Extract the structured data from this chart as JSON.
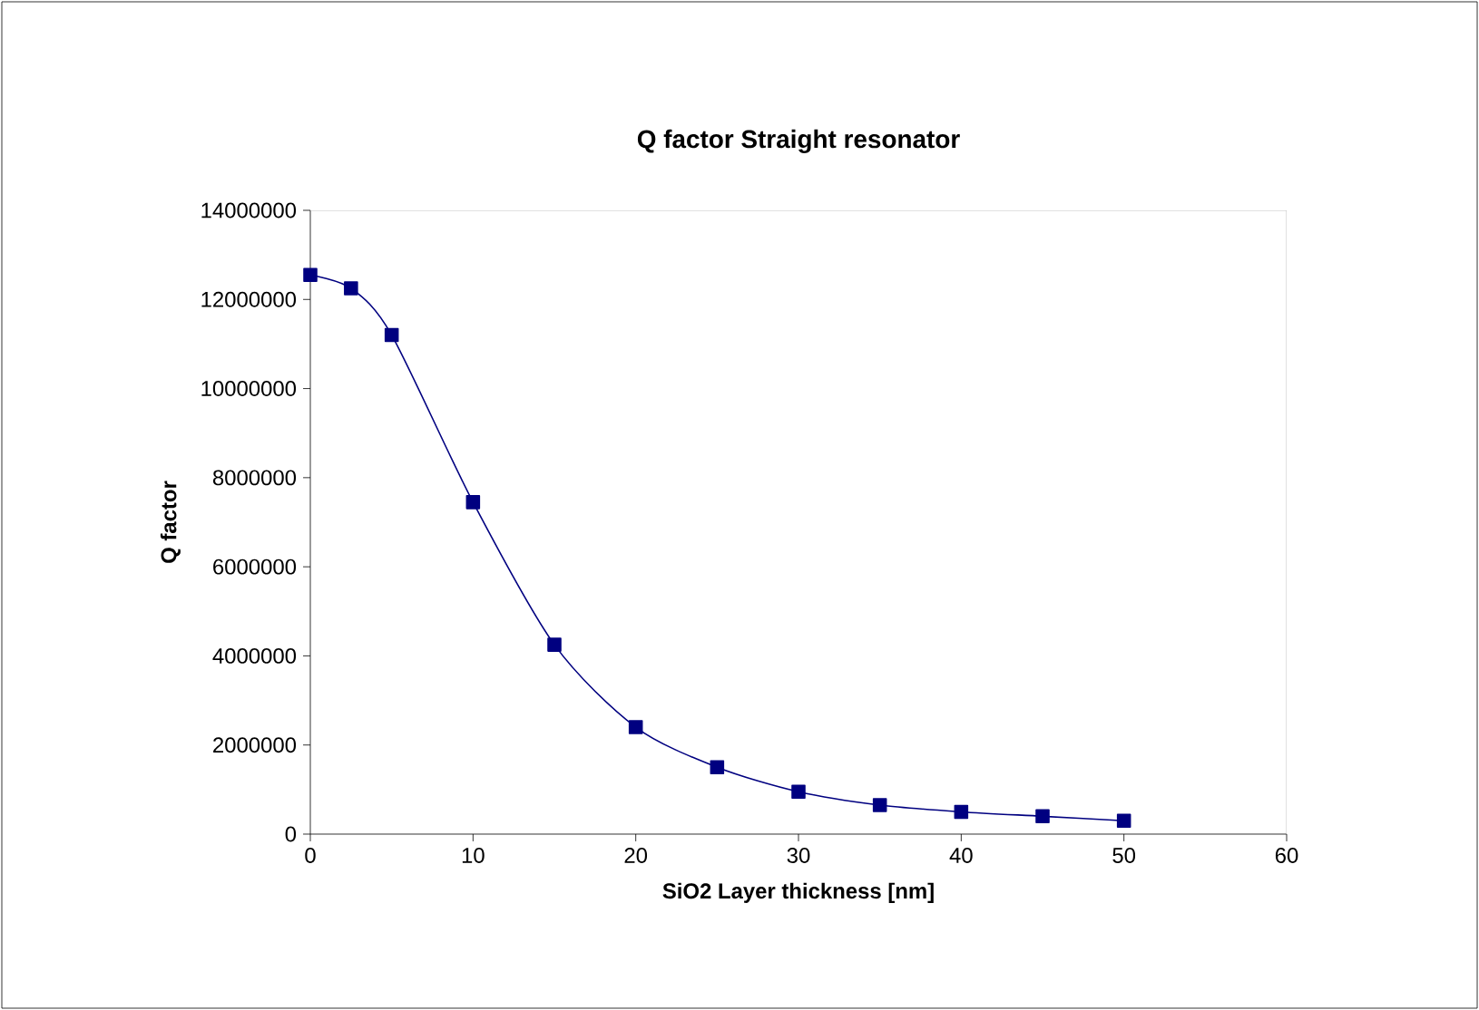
{
  "chart_data": {
    "type": "line",
    "title": "Q factor Straight resonator",
    "xlabel": "SiO2 Layer thickness [nm]",
    "ylabel": "Q factor",
    "x": [
      0,
      2.5,
      5,
      10,
      15,
      20,
      25,
      30,
      35,
      40,
      45,
      50
    ],
    "series": [
      {
        "color": "#000080",
        "values": [
          12550000,
          12250000,
          11200000,
          7450000,
          4250000,
          2400000,
          1500000,
          950000,
          650000,
          500000,
          400000,
          300000
        ]
      }
    ],
    "xlim": [
      0,
      60
    ],
    "ylim": [
      0,
      14000000
    ],
    "xticks": [
      0,
      10,
      20,
      30,
      40,
      50,
      60
    ],
    "yticks": [
      0,
      2000000,
      4000000,
      6000000,
      8000000,
      10000000,
      12000000,
      14000000
    ],
    "marker": "square",
    "line_style": "solid"
  }
}
